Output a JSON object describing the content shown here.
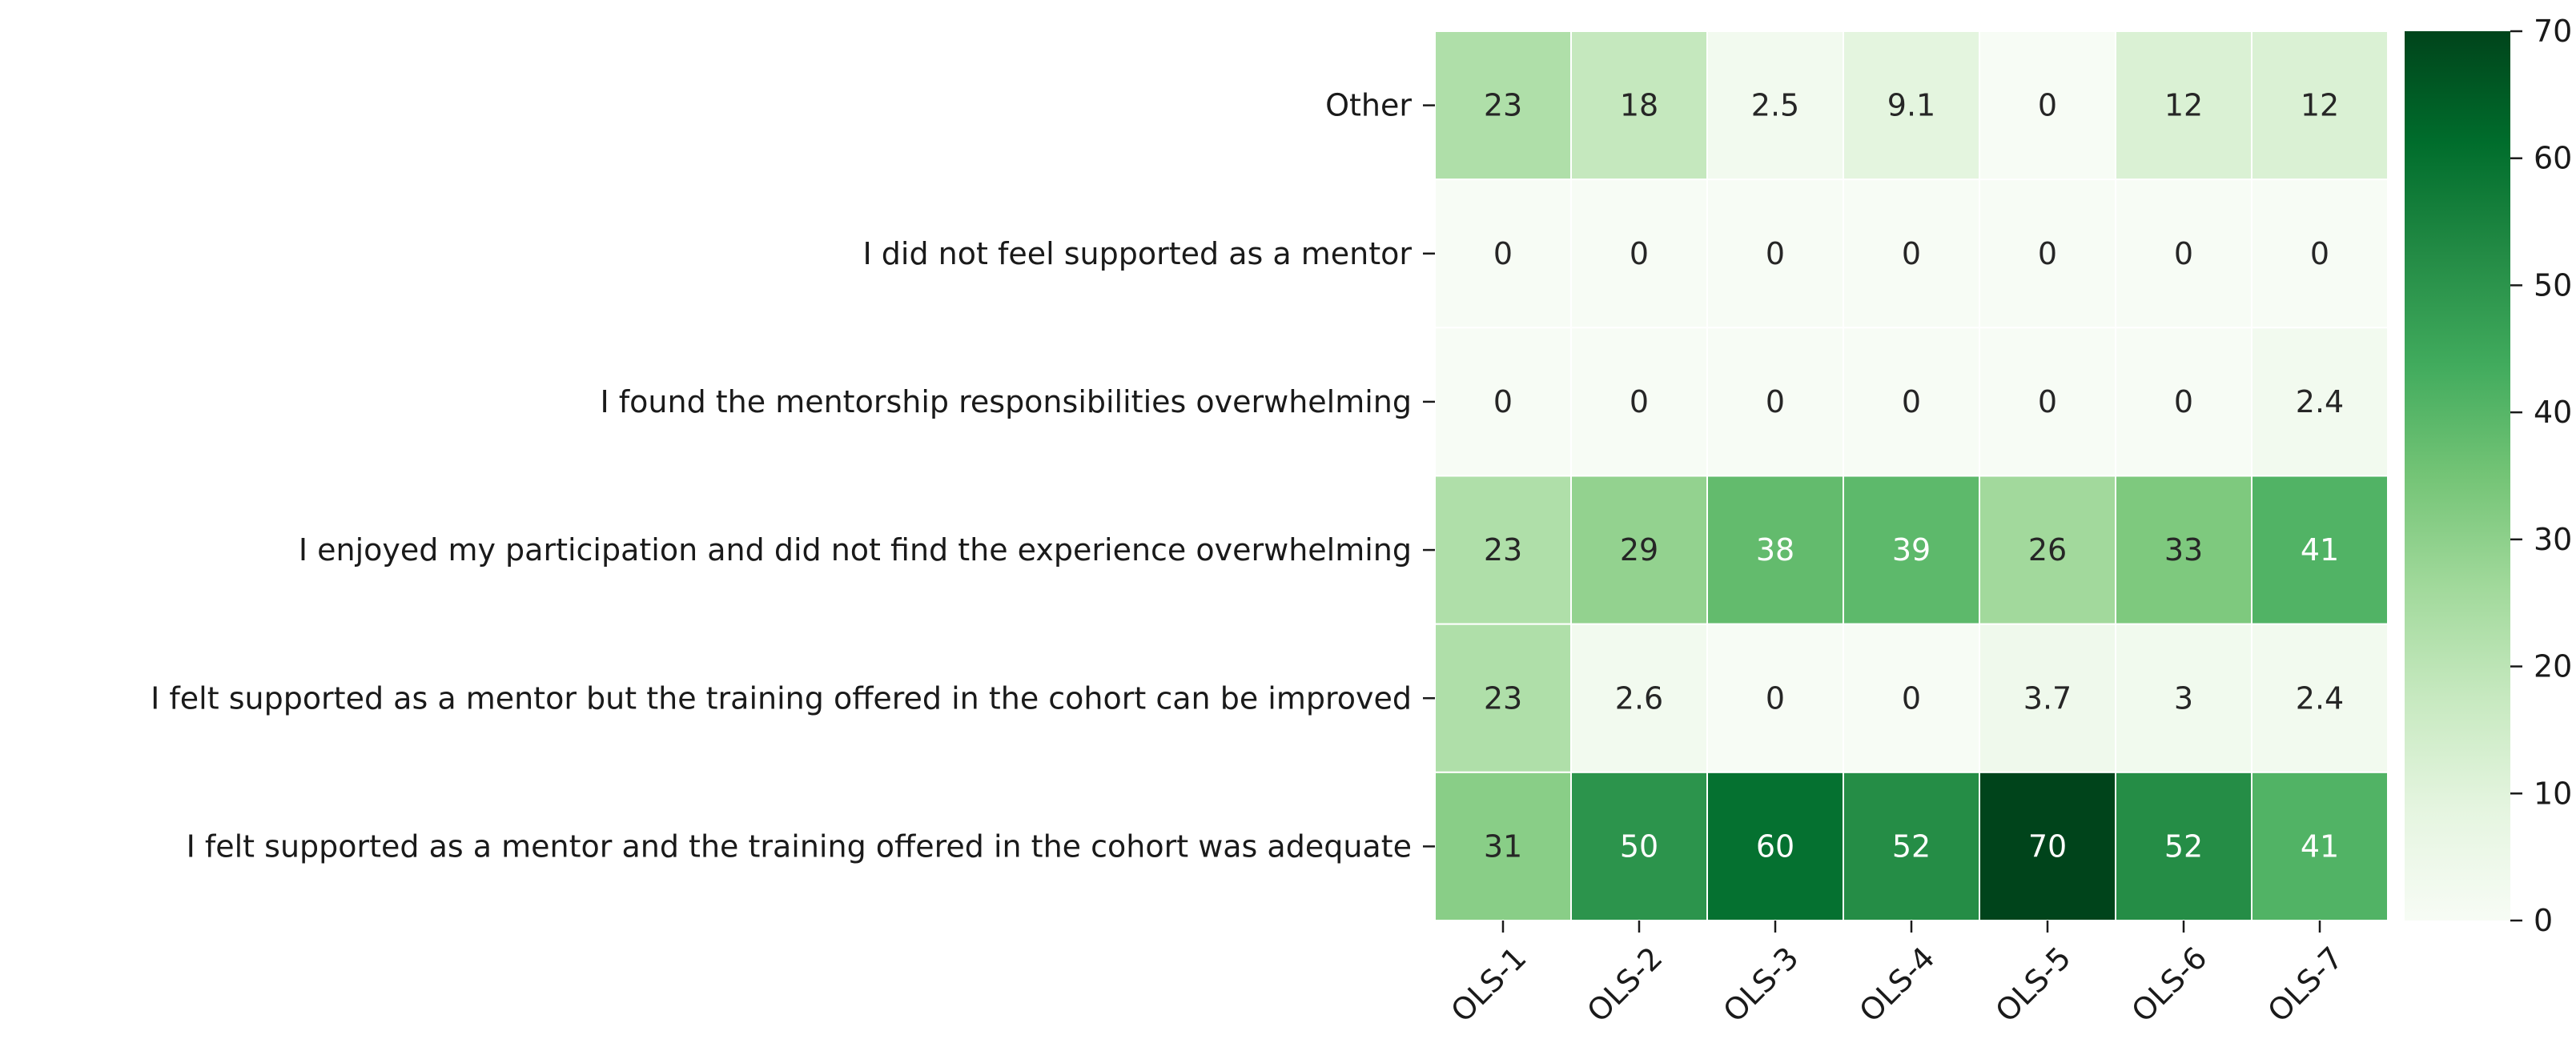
{
  "chart_data": {
    "type": "heatmap",
    "title": "",
    "xlabel": "",
    "ylabel": "",
    "columns": [
      "OLS-1",
      "OLS-2",
      "OLS-3",
      "OLS-4",
      "OLS-5",
      "OLS-6",
      "OLS-7"
    ],
    "rows": [
      "Other",
      "I did not feel supported as a mentor",
      "I found the mentorship responsibilities overwhelming",
      "I enjoyed my participation and did not find the experience overwhelming",
      "I felt supported as a mentor but the training offered in the cohort can be improved",
      "I felt supported as a mentor and the training offered in the cohort was adequate"
    ],
    "values": [
      [
        23,
        18,
        2.5,
        9.1,
        0,
        12,
        12
      ],
      [
        0,
        0,
        0,
        0,
        0,
        0,
        0
      ],
      [
        0,
        0,
        0,
        0,
        0,
        0,
        2.4
      ],
      [
        23,
        29,
        38,
        39,
        26,
        33,
        41
      ],
      [
        23,
        2.6,
        0,
        0,
        3.7,
        3,
        2.4
      ],
      [
        31,
        50,
        60,
        52,
        70,
        52,
        41
      ]
    ],
    "labels": [
      [
        "23",
        "18",
        "2.5",
        "9.1",
        "0",
        "12",
        "12"
      ],
      [
        "0",
        "0",
        "0",
        "0",
        "0",
        "0",
        "0"
      ],
      [
        "0",
        "0",
        "0",
        "0",
        "0",
        "0",
        "2.4"
      ],
      [
        "23",
        "29",
        "38",
        "39",
        "26",
        "33",
        "41"
      ],
      [
        "23",
        "2.6",
        "0",
        "0",
        "3.7",
        "3",
        "2.4"
      ],
      [
        "31",
        "50",
        "60",
        "52",
        "70",
        "52",
        "41"
      ]
    ],
    "colorbar": {
      "range": [
        0,
        70
      ],
      "ticks": [
        "0",
        "10",
        "20",
        "30",
        "40",
        "50",
        "60",
        "70"
      ],
      "colormap": "Greens"
    },
    "grid": false,
    "legend": "colorbar-right"
  }
}
